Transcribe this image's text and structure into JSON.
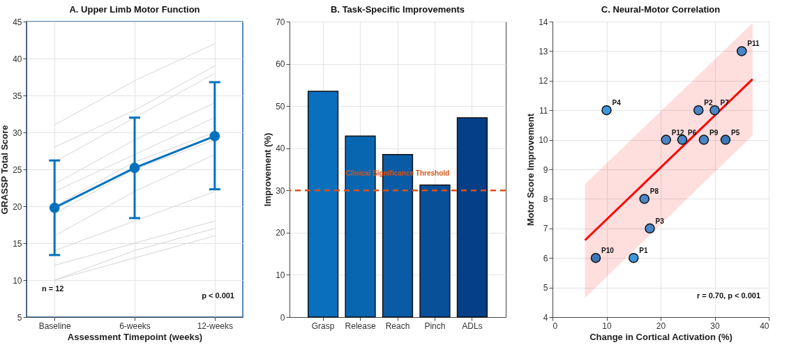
{
  "chart_data": [
    {
      "type": "line",
      "title": "A. Upper Limb Motor Function",
      "xlabel": "Assessment Timepoint (weeks)",
      "ylabel": "GRASSP Total Score",
      "categories": [
        "Baseline",
        "6-weeks",
        "12-weeks"
      ],
      "ylim": [
        5,
        45
      ],
      "yticks": [
        5,
        10,
        15,
        20,
        25,
        30,
        35,
        40,
        45
      ],
      "grid": true,
      "annotations": [
        "n = 12",
        "p < 0.001"
      ],
      "series": [
        {
          "color": "#d4d4d4",
          "marker": "none",
          "values": [
            31,
            37,
            42
          ]
        },
        {
          "color": "#d4d4d4",
          "marker": "none",
          "values": [
            28,
            33,
            39
          ]
        },
        {
          "color": "#d4d4d4",
          "marker": "none",
          "values": [
            26,
            32,
            38
          ]
        },
        {
          "color": "#d4d4d4",
          "marker": "none",
          "values": [
            23,
            29,
            34
          ]
        },
        {
          "color": "#d4d4d4",
          "marker": "none",
          "values": [
            22,
            27,
            32
          ]
        },
        {
          "color": "#d4d4d4",
          "marker": "none",
          "values": [
            20,
            26,
            30
          ]
        },
        {
          "color": "#d4d4d4",
          "marker": "none",
          "values": [
            19,
            25,
            29
          ]
        },
        {
          "color": "#d4d4d4",
          "marker": "none",
          "values": [
            16,
            22,
            27
          ]
        },
        {
          "color": "#d4d4d4",
          "marker": "none",
          "values": [
            14,
            18,
            22
          ]
        },
        {
          "color": "#d4d4d4",
          "marker": "none",
          "values": [
            12,
            15,
            18
          ]
        },
        {
          "color": "#d4d4d4",
          "marker": "none",
          "values": [
            10,
            14,
            17
          ]
        },
        {
          "color": "#d4d4d4",
          "marker": "none",
          "values": [
            10,
            13,
            16
          ]
        },
        {
          "color": "#0072bd",
          "marker": "circle",
          "values": [
            19.8,
            25.2,
            29.5
          ],
          "errors": [
            [
              13.4,
              26.2
            ],
            [
              18.4,
              32.0
            ],
            [
              22.3,
              36.8
            ]
          ]
        }
      ]
    },
    {
      "type": "bar",
      "title": "B. Task-Specific Improvements",
      "ylabel": "Improvement (%)",
      "categories": [
        "Grasp",
        "Release",
        "Reach",
        "Pinch",
        "ADLs"
      ],
      "values": [
        53.5,
        42.9,
        38.5,
        31.3,
        47.2
      ],
      "colors": [
        "#0a6fbd",
        "#0866b1",
        "#0a5ba5",
        "#08509a",
        "#043f87"
      ],
      "ylim": [
        0,
        70
      ],
      "yticks": [
        0,
        10,
        20,
        30,
        40,
        50,
        60,
        70
      ],
      "grid": true,
      "ref_lines": [
        {
          "axis": "y",
          "value": 30,
          "label": "Clinical Significance Threshold",
          "color": "#d95319",
          "line_style": "dashed"
        }
      ]
    },
    {
      "type": "scatter",
      "title": "C. Neural-Motor Correlation",
      "xlabel": "Change in Cortical Activation (%)",
      "ylabel": "Motor Score Improvement",
      "xlim": [
        0,
        40
      ],
      "xticks": [
        0,
        10,
        20,
        30,
        40
      ],
      "ylim": [
        4,
        14
      ],
      "yticks": [
        4,
        5,
        6,
        7,
        8,
        9,
        10,
        11,
        12,
        13,
        14
      ],
      "grid": true,
      "annotations": [
        {
          "text": "P1",
          "x": 15,
          "y": 6
        },
        {
          "text": "P2",
          "x": 27,
          "y": 11
        },
        {
          "text": "P3",
          "x": 18,
          "y": 7
        },
        {
          "text": "P4",
          "x": 10,
          "y": 11
        },
        {
          "text": "P5",
          "x": 32,
          "y": 10
        },
        {
          "text": "P6",
          "x": 24,
          "y": 10
        },
        {
          "text": "P7",
          "x": 30,
          "y": 11
        },
        {
          "text": "P8",
          "x": 17,
          "y": 8
        },
        {
          "text": "P9",
          "x": 28,
          "y": 10
        },
        {
          "text": "P10",
          "x": 8,
          "y": 6
        },
        {
          "text": "P11",
          "x": 35,
          "y": 13
        },
        {
          "text": "P12",
          "x": 21,
          "y": 10
        },
        "r = 0.70, p < 0.001"
      ],
      "series": [
        {
          "type": "line",
          "color": "#ff0000",
          "x": [
            6,
            37
          ],
          "values": [
            6.6,
            12.05
          ],
          "lower": [
            4.65,
            10.15
          ],
          "upper": [
            8.5,
            13.95
          ]
        },
        {
          "type": "scatter",
          "x": [
            15,
            27,
            18,
            10,
            32,
            24,
            30,
            17,
            28,
            8,
            35,
            21
          ],
          "values": [
            6,
            11,
            7,
            11,
            10,
            10,
            11,
            8,
            10,
            6,
            13,
            10
          ],
          "colors": [
            "#3f97dc",
            "#4a86c8",
            "#4a86c8",
            "#3f97dc",
            "#3b78b8",
            "#4a86c8",
            "#4a86c8",
            "#4a86c8",
            "#4a86c8",
            "#3b78b8",
            "#4a86c8",
            "#4a86c8"
          ]
        }
      ]
    }
  ]
}
